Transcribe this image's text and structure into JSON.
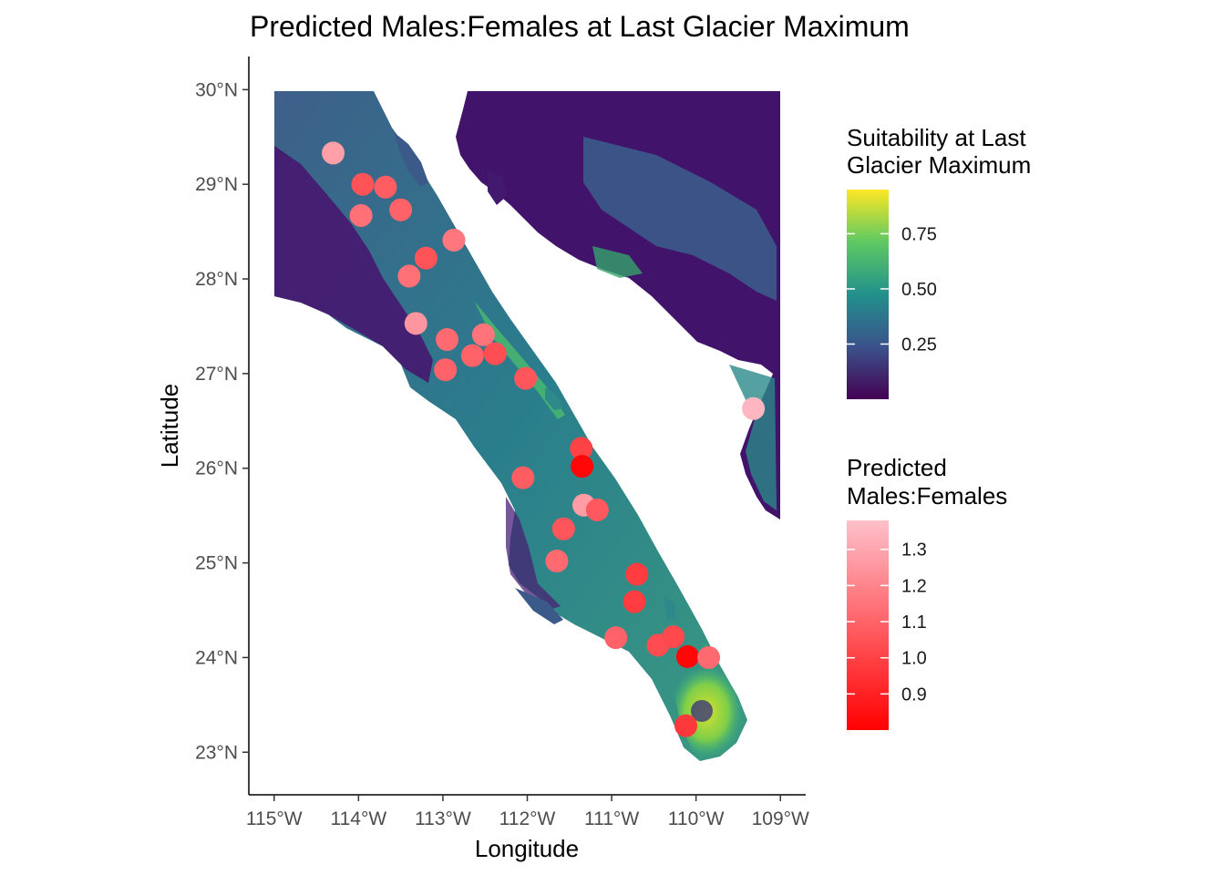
{
  "chart_data": {
    "type": "scatter",
    "title": "Predicted Males:Females at Last Glacier Maximum",
    "xlabel": "Longitude",
    "ylabel": "Latitude",
    "xlim": [
      -115.3,
      -108.7
    ],
    "ylim": [
      22.55,
      30.35
    ],
    "x_ticks": [
      {
        "value": -115,
        "label": "115°W"
      },
      {
        "value": -114,
        "label": "114°W"
      },
      {
        "value": -113,
        "label": "113°W"
      },
      {
        "value": -112,
        "label": "112°W"
      },
      {
        "value": -111,
        "label": "111°W"
      },
      {
        "value": -110,
        "label": "110°W"
      },
      {
        "value": -109,
        "label": "109°W"
      }
    ],
    "y_ticks": [
      {
        "value": 23,
        "label": "23°N"
      },
      {
        "value": 24,
        "label": "24°N"
      },
      {
        "value": 25,
        "label": "25°N"
      },
      {
        "value": 26,
        "label": "26°N"
      },
      {
        "value": 27,
        "label": "27°N"
      },
      {
        "value": 28,
        "label": "28°N"
      },
      {
        "value": 29,
        "label": "29°N"
      },
      {
        "value": 30,
        "label": "30°N"
      }
    ],
    "grid": false,
    "legend_placement": "right",
    "raster_legend": {
      "title_lines": [
        "Suitability at Last",
        "Glacier Maximum"
      ],
      "range": [
        0.0,
        0.95
      ],
      "ticks": [
        {
          "value": 0.25,
          "label": "0.25"
        },
        {
          "value": 0.5,
          "label": "0.50"
        },
        {
          "value": 0.75,
          "label": "0.75"
        }
      ],
      "colors": [
        "#440154",
        "#3b528b",
        "#21918c",
        "#5ec962",
        "#fde725"
      ]
    },
    "point_legend": {
      "title_lines": [
        "Predicted",
        "Males:Females"
      ],
      "range": [
        0.8,
        1.38
      ],
      "ticks": [
        {
          "value": 0.9,
          "label": "0.9"
        },
        {
          "value": 1.0,
          "label": "1.0"
        },
        {
          "value": 1.1,
          "label": "1.1"
        },
        {
          "value": 1.2,
          "label": "1.2"
        },
        {
          "value": 1.3,
          "label": "1.3"
        }
      ],
      "color_low": "#ff0000",
      "color_high": "#ffc0cb"
    },
    "points": [
      {
        "lon": -114.3,
        "lat": 29.33,
        "ratio": 1.28
      },
      {
        "lon": -113.95,
        "lat": 29.0,
        "ratio": 1.05
      },
      {
        "lon": -113.68,
        "lat": 28.97,
        "ratio": 1.08
      },
      {
        "lon": -113.97,
        "lat": 28.67,
        "ratio": 1.14
      },
      {
        "lon": -113.5,
        "lat": 28.73,
        "ratio": 1.1
      },
      {
        "lon": -112.87,
        "lat": 28.41,
        "ratio": 1.16
      },
      {
        "lon": -113.2,
        "lat": 28.22,
        "ratio": 1.05
      },
      {
        "lon": -113.4,
        "lat": 28.03,
        "ratio": 1.14
      },
      {
        "lon": -113.32,
        "lat": 27.53,
        "ratio": 1.25
      },
      {
        "lon": -112.52,
        "lat": 27.41,
        "ratio": 1.15
      },
      {
        "lon": -112.95,
        "lat": 27.36,
        "ratio": 1.12
      },
      {
        "lon": -112.65,
        "lat": 27.19,
        "ratio": 1.1
      },
      {
        "lon": -112.38,
        "lat": 27.21,
        "ratio": 1.04
      },
      {
        "lon": -112.97,
        "lat": 27.04,
        "ratio": 1.1
      },
      {
        "lon": -112.02,
        "lat": 26.95,
        "ratio": 1.06
      },
      {
        "lon": -111.36,
        "lat": 26.21,
        "ratio": 1.0
      },
      {
        "lon": -111.35,
        "lat": 26.02,
        "ratio": 0.82
      },
      {
        "lon": -112.05,
        "lat": 25.9,
        "ratio": 1.08
      },
      {
        "lon": -111.33,
        "lat": 25.61,
        "ratio": 1.27
      },
      {
        "lon": -111.17,
        "lat": 25.56,
        "ratio": 1.07
      },
      {
        "lon": -111.57,
        "lat": 25.36,
        "ratio": 1.06
      },
      {
        "lon": -111.65,
        "lat": 25.02,
        "ratio": 1.12
      },
      {
        "lon": -110.7,
        "lat": 24.88,
        "ratio": 0.98
      },
      {
        "lon": -110.73,
        "lat": 24.59,
        "ratio": 0.98
      },
      {
        "lon": -110.95,
        "lat": 24.21,
        "ratio": 1.1
      },
      {
        "lon": -110.45,
        "lat": 24.13,
        "ratio": 1.03
      },
      {
        "lon": -110.27,
        "lat": 24.22,
        "ratio": 1.02
      },
      {
        "lon": -110.1,
        "lat": 24.01,
        "ratio": 0.82
      },
      {
        "lon": -109.85,
        "lat": 24.0,
        "ratio": 1.12
      },
      {
        "lon": -110.12,
        "lat": 23.28,
        "ratio": 0.97
      },
      {
        "lon": -109.32,
        "lat": 26.63,
        "ratio": 1.35
      }
    ]
  }
}
